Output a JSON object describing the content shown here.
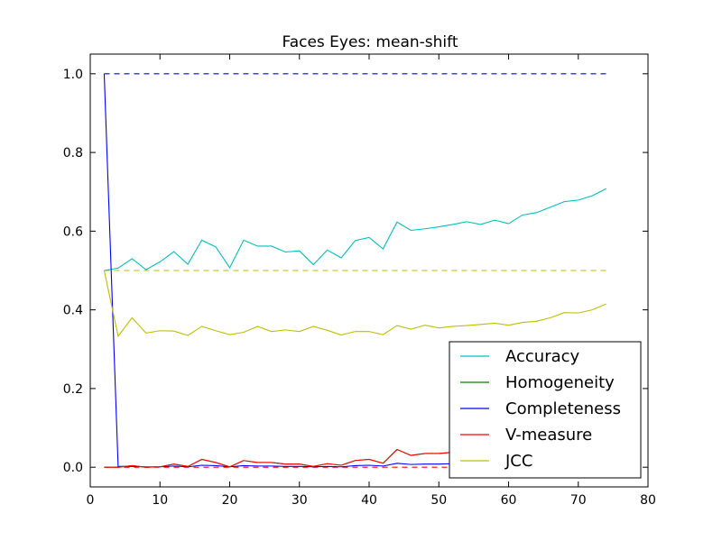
{
  "chart_data": {
    "type": "line",
    "title": "Faces Eyes: mean-shift",
    "xlabel": "",
    "ylabel": "",
    "xlim": [
      0,
      80
    ],
    "ylim": [
      -0.05,
      1.05
    ],
    "xticks": [
      0,
      10,
      20,
      30,
      40,
      50,
      60,
      70,
      80
    ],
    "yticks": [
      0.0,
      0.2,
      0.4,
      0.6,
      0.8,
      1.0
    ],
    "xtick_labels": [
      "0",
      "10",
      "20",
      "30",
      "40",
      "50",
      "60",
      "70",
      "80"
    ],
    "ytick_labels": [
      "0.0",
      "0.2",
      "0.4",
      "0.6",
      "0.8",
      "1.0"
    ],
    "grid": false,
    "legend_position": "bottom-right",
    "x": [
      2,
      4,
      6,
      8,
      10,
      12,
      14,
      16,
      18,
      20,
      22,
      24,
      26,
      28,
      30,
      32,
      34,
      36,
      38,
      40,
      42,
      44,
      46,
      48,
      50,
      52,
      54,
      56,
      58,
      60,
      62,
      64,
      66,
      68,
      70,
      72,
      74
    ],
    "series": [
      {
        "name": "Accuracy",
        "color": "#00bfbf",
        "style": "solid",
        "values": [
          0.5,
          0.506,
          0.53,
          0.502,
          0.522,
          0.548,
          0.516,
          0.577,
          0.56,
          0.507,
          0.577,
          0.562,
          0.562,
          0.547,
          0.55,
          0.515,
          0.552,
          0.532,
          0.576,
          0.584,
          0.555,
          0.623,
          0.602,
          0.606,
          0.611,
          0.617,
          0.624,
          0.617,
          0.628,
          0.619,
          0.641,
          0.647,
          0.661,
          0.675,
          0.679,
          0.69,
          0.708
        ]
      },
      {
        "name": "Homogeneity",
        "color": "#008000",
        "style": "solid",
        "values": [
          0.0,
          0.0,
          0.004,
          0.0,
          0.001,
          0.008,
          0.002,
          0.02,
          0.012,
          0.001,
          0.017,
          0.012,
          0.012,
          0.008,
          0.008,
          0.002,
          0.009,
          0.005,
          0.017,
          0.02,
          0.01,
          0.045,
          0.03,
          0.035,
          0.035,
          0.038,
          0.04,
          0.037,
          0.04,
          0.037,
          0.042,
          0.044,
          0.047,
          0.05,
          0.051,
          0.055,
          0.058
        ]
      },
      {
        "name": "Completeness",
        "color": "#0000ff",
        "style": "solid",
        "values": [
          1.0,
          0.002,
          0.002,
          0.001,
          0.001,
          0.003,
          0.001,
          0.005,
          0.004,
          0.001,
          0.004,
          0.003,
          0.003,
          0.002,
          0.002,
          0.001,
          0.002,
          0.001,
          0.004,
          0.005,
          0.003,
          0.01,
          0.007,
          0.008,
          0.008,
          0.009,
          0.009,
          0.008,
          0.009,
          0.009,
          0.01,
          0.01,
          0.011,
          0.012,
          0.012,
          0.013,
          0.014
        ]
      },
      {
        "name": "V-measure",
        "color": "#ff0000",
        "style": "solid",
        "values": [
          0.0,
          0.0,
          0.004,
          0.0,
          0.001,
          0.008,
          0.002,
          0.02,
          0.012,
          0.001,
          0.017,
          0.012,
          0.012,
          0.008,
          0.008,
          0.002,
          0.009,
          0.005,
          0.017,
          0.02,
          0.01,
          0.045,
          0.03,
          0.035,
          0.035,
          0.038,
          0.04,
          0.037,
          0.04,
          0.037,
          0.042,
          0.044,
          0.047,
          0.05,
          0.051,
          0.055,
          0.058
        ]
      },
      {
        "name": "JCC",
        "color": "#bfbf00",
        "style": "solid",
        "values": [
          0.5,
          0.333,
          0.38,
          0.341,
          0.347,
          0.346,
          0.335,
          0.358,
          0.347,
          0.337,
          0.343,
          0.358,
          0.345,
          0.349,
          0.345,
          0.358,
          0.348,
          0.336,
          0.345,
          0.345,
          0.337,
          0.36,
          0.351,
          0.361,
          0.354,
          0.358,
          0.36,
          0.363,
          0.366,
          0.361,
          0.368,
          0.371,
          0.38,
          0.393,
          0.392,
          0.4,
          0.415
        ]
      },
      {
        "name": "",
        "color": "#008000",
        "style": "dashed",
        "values": [
          0.5,
          0.5,
          0.5,
          0.5,
          0.5,
          0.5,
          0.5,
          0.5,
          0.5,
          0.5,
          0.5,
          0.5,
          0.5,
          0.5,
          0.5,
          0.5,
          0.5,
          0.5,
          0.5,
          0.5,
          0.5,
          0.5,
          0.5,
          0.5,
          0.5,
          0.5,
          0.5,
          0.5,
          0.5,
          0.5,
          0.5,
          0.5,
          0.5,
          0.5,
          0.5,
          0.5,
          0.5
        ]
      },
      {
        "name": "",
        "color": "#0000ff",
        "style": "dashed",
        "values": [
          1.0,
          1.0,
          1.0,
          1.0,
          1.0,
          1.0,
          1.0,
          1.0,
          1.0,
          1.0,
          1.0,
          1.0,
          1.0,
          1.0,
          1.0,
          1.0,
          1.0,
          1.0,
          1.0,
          1.0,
          1.0,
          1.0,
          1.0,
          1.0,
          1.0,
          1.0,
          1.0,
          1.0,
          1.0,
          1.0,
          1.0,
          1.0,
          1.0,
          1.0,
          1.0,
          1.0,
          1.0
        ]
      },
      {
        "name": "",
        "color": "#ff0000",
        "style": "dashed",
        "values": [
          0.0,
          0.0,
          0.0,
          0.0,
          0.0,
          0.0,
          0.0,
          0.0,
          0.0,
          0.0,
          0.0,
          0.0,
          0.0,
          0.0,
          0.0,
          0.0,
          0.0,
          0.0,
          0.0,
          0.0,
          0.0,
          0.0,
          0.0,
          0.0,
          0.0,
          0.0,
          0.0,
          0.0,
          0.0,
          0.0,
          0.0,
          0.0,
          0.0,
          0.0,
          0.0,
          0.0,
          0.0
        ]
      },
      {
        "name": "",
        "color": "#bfbf00",
        "style": "dashed",
        "values": [
          0.5,
          0.5,
          0.5,
          0.5,
          0.5,
          0.5,
          0.5,
          0.5,
          0.5,
          0.5,
          0.5,
          0.5,
          0.5,
          0.5,
          0.5,
          0.5,
          0.5,
          0.5,
          0.5,
          0.5,
          0.5,
          0.5,
          0.5,
          0.5,
          0.5,
          0.5,
          0.5,
          0.5,
          0.5,
          0.5,
          0.5,
          0.5,
          0.5,
          0.5,
          0.5,
          0.5,
          0.5
        ]
      }
    ]
  }
}
